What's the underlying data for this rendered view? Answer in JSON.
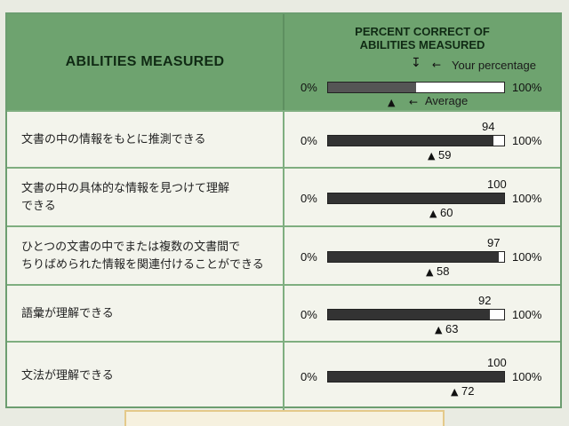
{
  "header": {
    "abilities_title": "ABILITIES MEASURED",
    "percent_title_line1": "PERCENT CORRECT OF",
    "percent_title_line2": "ABILITIES MEASURED",
    "your_percentage": "Your percentage",
    "average": "Average",
    "min_label": "0%",
    "max_label": "100%",
    "legend_your_fraction": 0.5
  },
  "rows": [
    {
      "line1": "文書の中の情報をもとに推測できる",
      "line2": "",
      "score": 94,
      "average": 59
    },
    {
      "line1": "文書の中の具体的な情報を見つけて理解",
      "line2": "できる",
      "score": 100,
      "average": 60
    },
    {
      "line1": "ひとつの文書の中でまたは複数の文書間で",
      "line2": "ちりばめられた情報を関連付けることができる",
      "score": 97,
      "average": 58
    },
    {
      "line1": "語彙が理解できる",
      "line2": "",
      "score": 92,
      "average": 63
    },
    {
      "line1": "文法が理解できる",
      "line2": "",
      "score": 100,
      "average": 72
    }
  ],
  "scale": {
    "min_label": "0%",
    "max_label": "100%"
  },
  "colors": {
    "header_green": "#6ea36f",
    "bar_fill": "#333333"
  }
}
